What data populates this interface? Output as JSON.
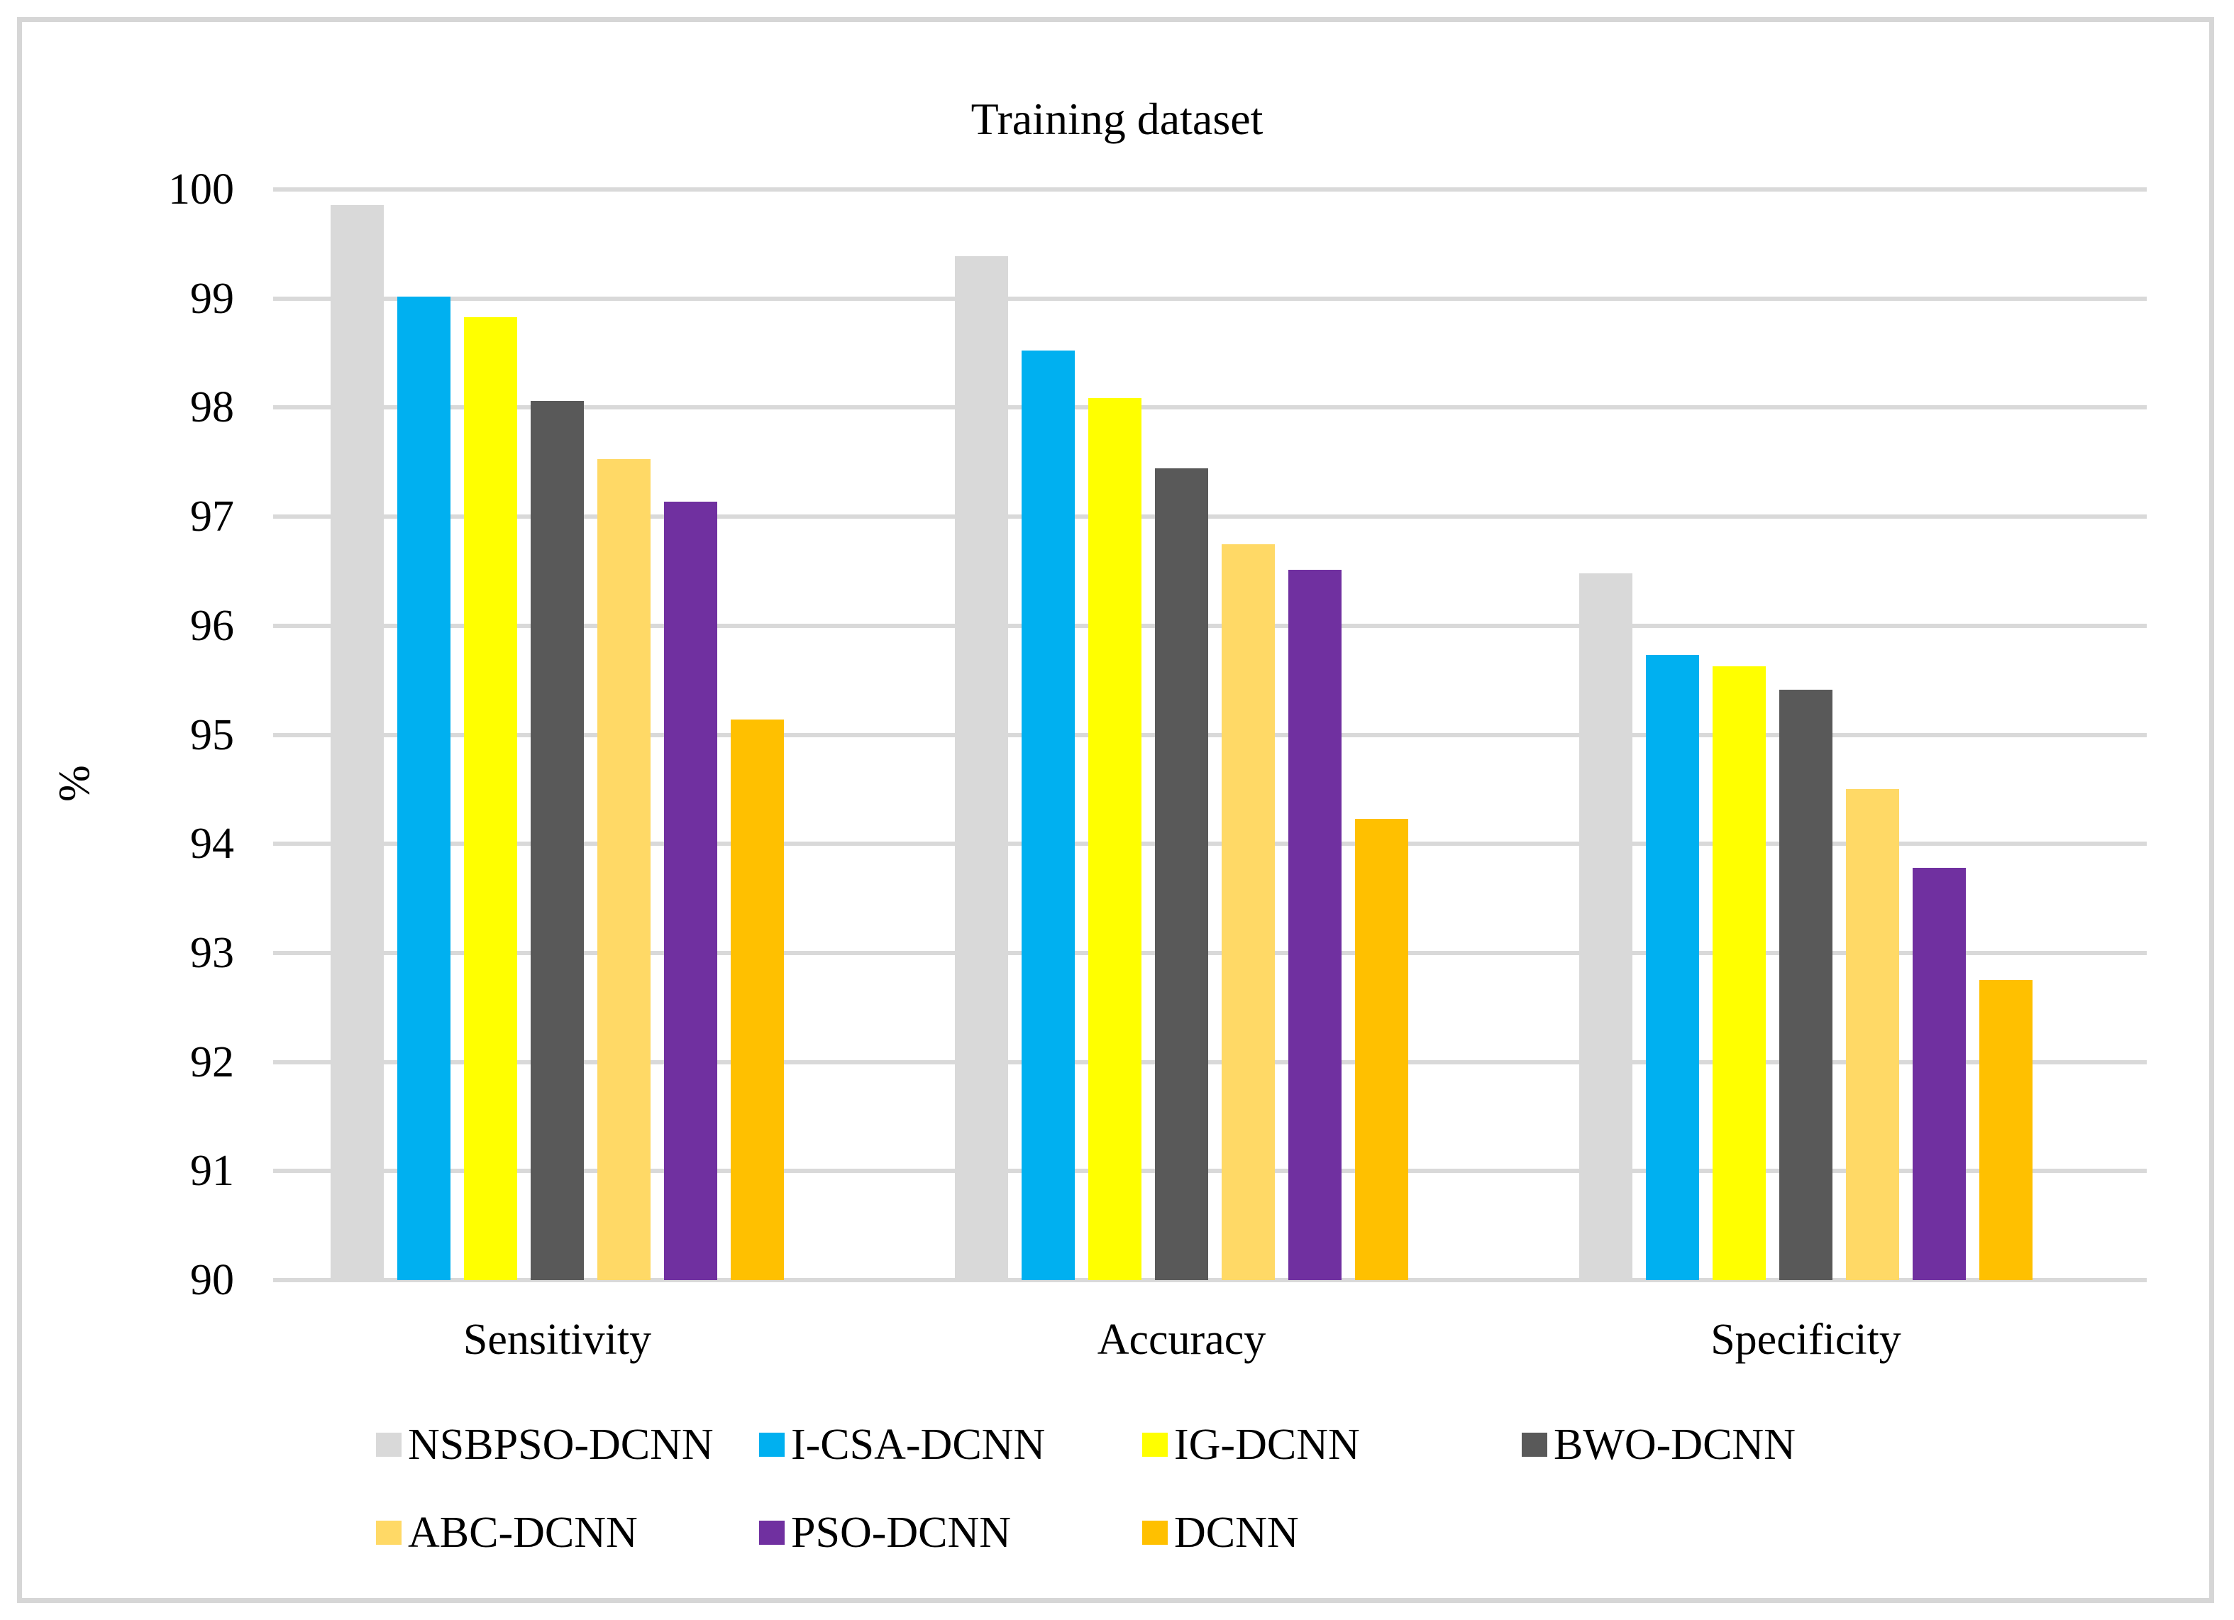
{
  "chart_data": {
    "type": "bar",
    "title": "Training dataset",
    "ylabel": "%",
    "xlabel": "",
    "ylim": [
      90,
      100
    ],
    "yticks": [
      100,
      99,
      98,
      97,
      96,
      95,
      94,
      93,
      92,
      91,
      90
    ],
    "grid": true,
    "legend_position": "bottom",
    "categories": [
      "Sensitivity",
      "Accuracy",
      "Specificity"
    ],
    "series": [
      {
        "name": "NSBPSO-DCNN",
        "color": "#d9d9d9",
        "values": [
          99.86,
          99.39,
          96.48
        ]
      },
      {
        "name": "I-CSA-DCNN",
        "color": "#00b0f0",
        "values": [
          99.02,
          98.52,
          95.73
        ]
      },
      {
        "name": "IG-DCNN",
        "color": "#ffff00",
        "values": [
          98.83,
          98.09,
          95.63
        ]
      },
      {
        "name": "BWO-DCNN",
        "color": "#595959",
        "values": [
          98.06,
          97.44,
          95.41
        ]
      },
      {
        "name": "ABC-DCNN",
        "color": "#ffd966",
        "values": [
          97.53,
          96.75,
          94.5
        ]
      },
      {
        "name": "PSO-DCNN",
        "color": "#7030a0",
        "values": [
          97.14,
          96.51,
          93.78
        ]
      },
      {
        "name": "DCNN",
        "color": "#ffc000",
        "values": [
          95.14,
          94.23,
          92.75
        ]
      }
    ],
    "gridline_color": "#d9d9d9"
  }
}
